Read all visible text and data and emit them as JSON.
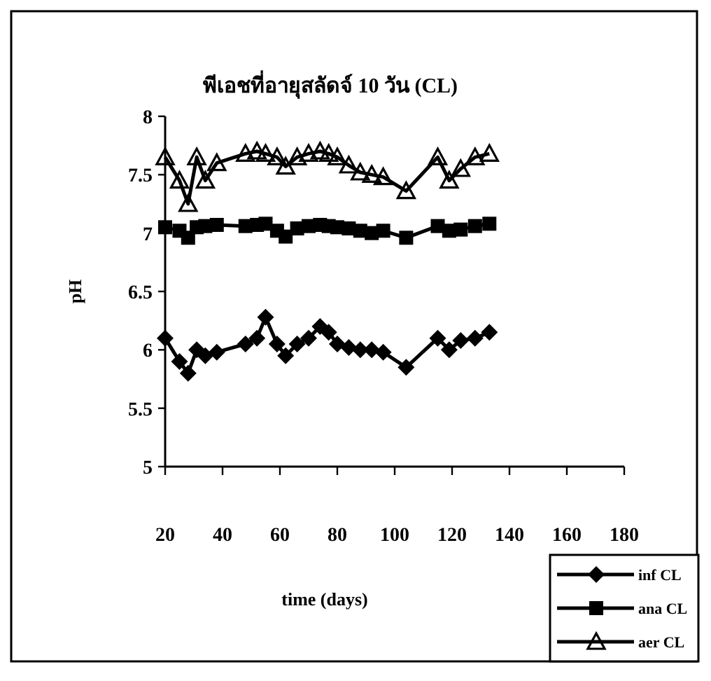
{
  "chart_data": {
    "type": "line",
    "title": "พีเอชที่อายุสลัดจ์ 10 วัน (CL)",
    "xlabel": "time (days)",
    "ylabel": "pH",
    "x": [
      20,
      25,
      28,
      31,
      34,
      38,
      48,
      52,
      55,
      59,
      62,
      66,
      70,
      74,
      77,
      80,
      84,
      88,
      92,
      96,
      104,
      115,
      119,
      123,
      128,
      133
    ],
    "series": [
      {
        "name": "inf CL",
        "color": "#000000",
        "marker": "diamond",
        "values": [
          6.1,
          5.9,
          5.8,
          6.0,
          5.95,
          5.98,
          6.05,
          6.1,
          6.28,
          6.05,
          5.95,
          6.05,
          6.1,
          6.2,
          6.15,
          6.05,
          6.02,
          6.0,
          6.0,
          5.98,
          5.85,
          6.1,
          6.0,
          6.08,
          6.1,
          6.15
        ]
      },
      {
        "name": "ana CL",
        "color": "#000000",
        "marker": "square",
        "values": [
          7.05,
          7.02,
          6.96,
          7.05,
          7.06,
          7.07,
          7.06,
          7.07,
          7.08,
          7.02,
          6.97,
          7.04,
          7.06,
          7.07,
          7.06,
          7.05,
          7.04,
          7.02,
          7.0,
          7.02,
          6.96,
          7.06,
          7.02,
          7.03,
          7.06,
          7.08
        ]
      },
      {
        "name": "aer CL",
        "color": "#000000",
        "marker": "triangle",
        "values": [
          7.65,
          7.45,
          7.25,
          7.65,
          7.45,
          7.6,
          7.68,
          7.7,
          7.68,
          7.65,
          7.57,
          7.65,
          7.68,
          7.7,
          7.68,
          7.65,
          7.58,
          7.52,
          7.5,
          7.48,
          7.36,
          7.65,
          7.45,
          7.55,
          7.65,
          7.68
        ]
      }
    ],
    "xlim": [
      20,
      180
    ],
    "ylim": [
      5,
      8
    ],
    "xticks": [
      20,
      40,
      60,
      80,
      100,
      120,
      140,
      160,
      180
    ],
    "yticks": [
      5,
      5.5,
      6,
      6.5,
      7,
      7.5,
      8
    ],
    "grid": false,
    "legend": "bottom right",
    "line_style": "solid"
  }
}
